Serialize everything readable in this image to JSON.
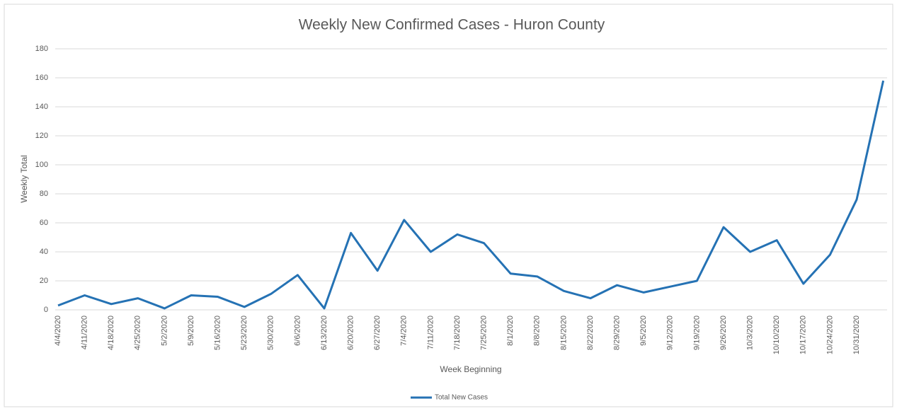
{
  "chart_data": {
    "type": "line",
    "title": "Weekly New Confirmed Cases - Huron County",
    "x_label": "Week Beginning",
    "y_label": "Weekly Total",
    "categories": [
      "4/4/2020",
      "4/11/2020",
      "4/18/2020",
      "4/25/2020",
      "5/2/2020",
      "5/9/2020",
      "5/16/2020",
      "5/23/2020",
      "5/30/2020",
      "6/6/2020",
      "6/13/2020",
      "6/20/2020",
      "6/27/2020",
      "7/4/2020",
      "7/11/2020",
      "7/18/2020",
      "7/25/2020",
      "8/1/2020",
      "8/8/2020",
      "8/15/2020",
      "8/22/2020",
      "8/29/2020",
      "9/5/2020",
      "9/12/2020",
      "9/19/2020",
      "9/26/2020",
      "10/3/2020",
      "10/10/2020",
      "10/17/2020",
      "10/24/2020",
      "10/31/2020",
      null
    ],
    "series": [
      {
        "name": "Total New Cases",
        "color": "#2572b4",
        "values": [
          3,
          10,
          4,
          8,
          1,
          10,
          9,
          2,
          11,
          24,
          1,
          53,
          27,
          62,
          40,
          52,
          46,
          25,
          23,
          13,
          8,
          17,
          12,
          16,
          20,
          57,
          40,
          48,
          18,
          38,
          76,
          158
        ]
      }
    ],
    "ylim": [
      0,
      180
    ],
    "yticks": [
      0,
      20,
      40,
      60,
      80,
      100,
      120,
      140,
      160,
      180
    ],
    "grid": true,
    "legend": "bottom"
  }
}
